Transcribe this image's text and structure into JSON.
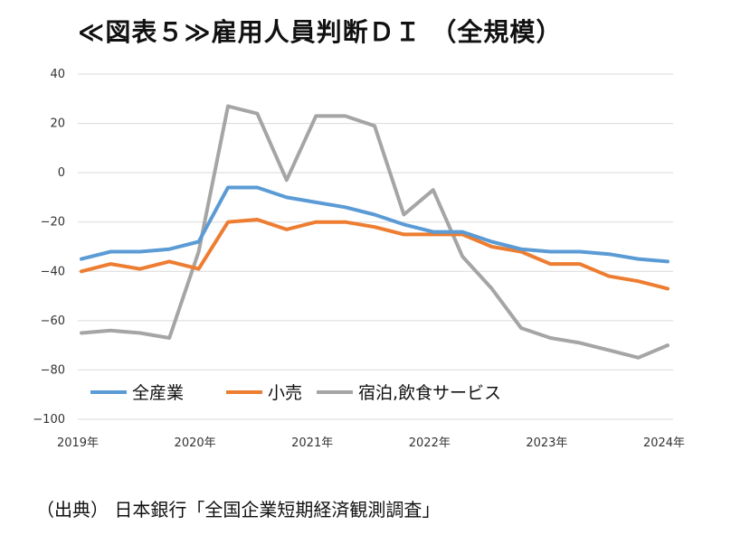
{
  "title": "≪図表５≫雇用人員判断ＤＩ （全規模）",
  "source": "（出典） 日本銀行「全国企業短期経済観測調査」",
  "chart_data": {
    "type": "line",
    "x": [
      "2019-03",
      "2019-06",
      "2019-09",
      "2019-12",
      "2020-03",
      "2020-06",
      "2020-09",
      "2020-12",
      "2021-03",
      "2021-06",
      "2021-09",
      "2021-12",
      "2022-03",
      "2022-06",
      "2022-09",
      "2022-12",
      "2023-03",
      "2023-06",
      "2023-09",
      "2023-12",
      "2024-03"
    ],
    "x_tick_labels": [
      "2019年",
      "2020年",
      "2021年",
      "2022年",
      "2023年",
      "2024年"
    ],
    "ylim": [
      -100,
      40
    ],
    "y_ticks": [
      40,
      20,
      0,
      -20,
      -40,
      -60,
      -80,
      -100
    ],
    "y_tick_labels": [
      "40",
      "20",
      "0",
      "−20",
      "−40",
      "−60",
      "−80",
      "−100"
    ],
    "grid": true,
    "legend_position": "bottom-left",
    "series": [
      {
        "name": "全産業",
        "color": "#5b9bd5",
        "values": [
          -35,
          -32,
          -32,
          -31,
          -28,
          -6,
          -6,
          -10,
          -12,
          -14,
          -17,
          -21,
          -24,
          -24,
          -28,
          -31,
          -32,
          -32,
          -33,
          -35,
          -36
        ]
      },
      {
        "name": "小売",
        "color": "#ed7d31",
        "values": [
          -40,
          -37,
          -39,
          -36,
          -39,
          -20,
          -19,
          -23,
          -20,
          -20,
          -22,
          -25,
          -25,
          -25,
          -30,
          -32,
          -37,
          -37,
          -42,
          -44,
          -47
        ]
      },
      {
        "name": "宿泊,飲食サービス",
        "color": "#a5a5a5",
        "values": [
          -65,
          -64,
          -65,
          -67,
          -32,
          27,
          24,
          -3,
          23,
          23,
          19,
          -17,
          -7,
          -34,
          -47,
          -63,
          -67,
          -69,
          -72,
          -75,
          -70
        ]
      }
    ]
  }
}
